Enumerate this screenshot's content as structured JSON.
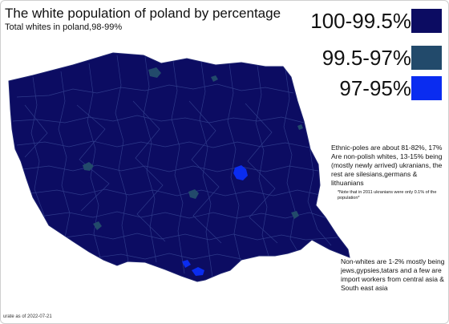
{
  "title": "The white population of poland by percentage",
  "subtitle": "Total whites in poland,98-99%",
  "legend": [
    {
      "label": "100-99.5%",
      "color": "#0c0c62"
    },
    {
      "label": "99.5-97%",
      "color": "#224a6b"
    },
    {
      "label": "97-95%",
      "color": "#0a2cf0"
    }
  ],
  "notes": {
    "ethnic": "Ethnic-poles are about 81-82%, 17% Are non-polish whites, 13-15% being (mostly newly arrived) ukranians, the rest are silesians,germans & lithuanians",
    "ukrainians": "*Note that in 2011 ukranians were only 0.1% of the population*",
    "nonwhites": "Non-whites are 1-2% mostly being jews,gypsies,tatars and a few are import workers from central asia & South east asia"
  },
  "footer": "urate as of 2022-07-21",
  "colors": {
    "map_fill": "#0c0c62",
    "border": "#2e3a8a"
  }
}
